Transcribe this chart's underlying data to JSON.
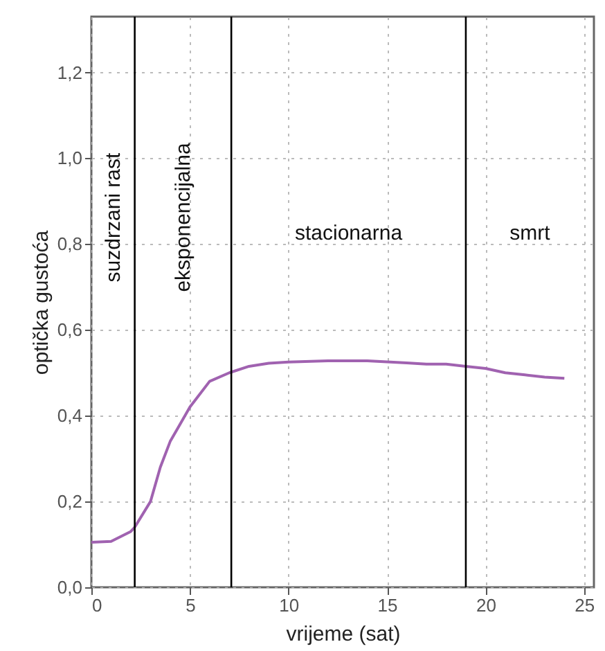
{
  "chart_data": {
    "type": "line",
    "xlabel": "vrijeme (sat)",
    "ylabel": "optička gustoća",
    "x": [
      0,
      1,
      2,
      2.2,
      3,
      3.5,
      4,
      5,
      6,
      7,
      8,
      9,
      10,
      12,
      14,
      16,
      17,
      18,
      19,
      20,
      21,
      22,
      23,
      24
    ],
    "series": [
      {
        "color": "#a062b0",
        "values": [
          0.105,
          0.107,
          0.13,
          0.14,
          0.2,
          0.28,
          0.34,
          0.42,
          0.48,
          0.5,
          0.515,
          0.522,
          0.525,
          0.528,
          0.528,
          0.523,
          0.52,
          0.52,
          0.515,
          0.51,
          0.5,
          0.495,
          0.49,
          0.487
        ]
      }
    ],
    "xlim": [
      0,
      25.5
    ],
    "xticks": [
      0,
      5,
      10,
      15,
      20,
      25
    ],
    "ylim": [
      0,
      1.33
    ],
    "yticks": [
      {
        "value": 0,
        "label": "0,0"
      },
      {
        "value": 0.2,
        "label": "0,2"
      },
      {
        "value": 0.4,
        "label": "0,4"
      },
      {
        "value": 0.6,
        "label": "0,6"
      },
      {
        "value": 0.8,
        "label": "0,8"
      },
      {
        "value": 1.0,
        "label": "1,0"
      },
      {
        "value": 1.2,
        "label": "1,2"
      }
    ],
    "grid": true,
    "ref_lines": [
      {
        "axis": "x",
        "value": 2.2,
        "color": "#000000"
      },
      {
        "axis": "x",
        "value": 7.1,
        "color": "#000000"
      },
      {
        "axis": "x",
        "value": 19,
        "color": "#000000"
      }
    ],
    "annotations": [
      "suzdrzani rast",
      "eksponencijalna",
      "stacionarna",
      "smrt"
    ]
  }
}
